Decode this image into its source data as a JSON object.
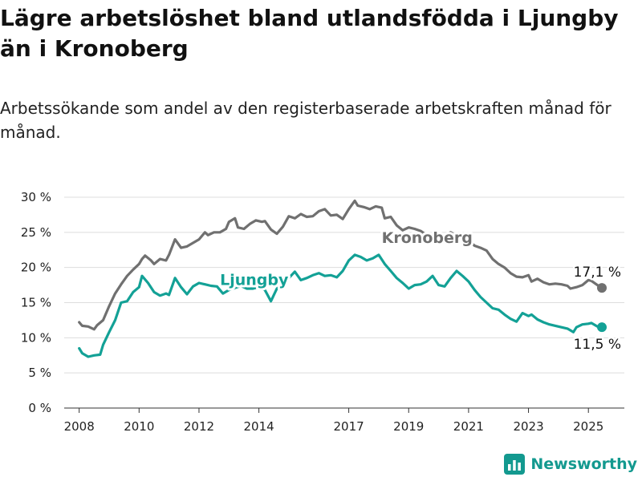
{
  "title": "Lägre arbetslöshet bland utlandsfödda i Ljungby än i Kronoberg",
  "subtitle": "Arbetssökande som andel av den registerbaserade arbetskraften månad för månad.",
  "brand": {
    "name": "Newsworthy",
    "color": "#13998f"
  },
  "chart_data": {
    "type": "line",
    "y_ticks": [
      "0 %",
      "5 %",
      "10 %",
      "15 %",
      "20 %",
      "25 %",
      "30 %"
    ],
    "ylim": [
      0,
      30
    ],
    "x_ticks": [
      "2008",
      "2010",
      "2012",
      "2014",
      "2017",
      "2019",
      "2021",
      "2023",
      "2025"
    ],
    "x_tick_values": [
      2008.0,
      2010.0,
      2012.0,
      2014.0,
      2017.0,
      2019.0,
      2021.0,
      2023.0,
      2025.0
    ],
    "xlim": [
      2007.5,
      2026.2
    ],
    "grid": true,
    "series": [
      {
        "name": "Kronoberg",
        "color": "#707070",
        "end_label": "17,1 %",
        "end_value": 17.1,
        "points": [
          [
            2008.0,
            12.2
          ],
          [
            2008.1,
            11.7
          ],
          [
            2008.3,
            11.6
          ],
          [
            2008.5,
            11.2
          ],
          [
            2008.6,
            11.8
          ],
          [
            2008.8,
            12.5
          ],
          [
            2009.0,
            14.5
          ],
          [
            2009.2,
            16.3
          ],
          [
            2009.4,
            17.6
          ],
          [
            2009.6,
            18.8
          ],
          [
            2009.8,
            19.7
          ],
          [
            2010.0,
            20.5
          ],
          [
            2010.1,
            21.2
          ],
          [
            2010.2,
            21.7
          ],
          [
            2010.4,
            21.0
          ],
          [
            2010.5,
            20.5
          ],
          [
            2010.7,
            21.2
          ],
          [
            2010.9,
            21.0
          ],
          [
            2011.0,
            21.8
          ],
          [
            2011.2,
            24.0
          ],
          [
            2011.4,
            22.8
          ],
          [
            2011.6,
            23.0
          ],
          [
            2011.8,
            23.5
          ],
          [
            2012.0,
            24.0
          ],
          [
            2012.2,
            25.0
          ],
          [
            2012.3,
            24.6
          ],
          [
            2012.5,
            25.0
          ],
          [
            2012.7,
            25.0
          ],
          [
            2012.9,
            25.5
          ],
          [
            2013.0,
            26.5
          ],
          [
            2013.2,
            27.0
          ],
          [
            2013.3,
            25.7
          ],
          [
            2013.5,
            25.5
          ],
          [
            2013.7,
            26.2
          ],
          [
            2013.9,
            26.7
          ],
          [
            2014.1,
            26.5
          ],
          [
            2014.2,
            26.6
          ],
          [
            2014.4,
            25.4
          ],
          [
            2014.6,
            24.8
          ],
          [
            2014.8,
            25.8
          ],
          [
            2015.0,
            27.3
          ],
          [
            2015.2,
            27.0
          ],
          [
            2015.4,
            27.6
          ],
          [
            2015.6,
            27.2
          ],
          [
            2015.8,
            27.3
          ],
          [
            2016.0,
            28.0
          ],
          [
            2016.2,
            28.3
          ],
          [
            2016.4,
            27.4
          ],
          [
            2016.6,
            27.5
          ],
          [
            2016.8,
            26.9
          ],
          [
            2017.0,
            28.3
          ],
          [
            2017.2,
            29.5
          ],
          [
            2017.3,
            28.8
          ],
          [
            2017.5,
            28.6
          ],
          [
            2017.7,
            28.3
          ],
          [
            2017.9,
            28.7
          ],
          [
            2018.1,
            28.5
          ],
          [
            2018.2,
            27.0
          ],
          [
            2018.4,
            27.2
          ],
          [
            2018.6,
            26.0
          ],
          [
            2018.8,
            25.3
          ],
          [
            2019.0,
            25.7
          ],
          [
            2019.2,
            25.5
          ],
          [
            2019.4,
            25.2
          ],
          [
            2019.6,
            24.6
          ],
          [
            2019.8,
            24.2
          ],
          [
            2020.0,
            23.8
          ],
          [
            2020.2,
            24.5
          ],
          [
            2020.4,
            25.0
          ],
          [
            2020.6,
            24.5
          ],
          [
            2020.8,
            24.0
          ],
          [
            2021.0,
            23.8
          ],
          [
            2021.2,
            23.1
          ],
          [
            2021.4,
            22.8
          ],
          [
            2021.6,
            22.4
          ],
          [
            2021.8,
            21.2
          ],
          [
            2022.0,
            20.5
          ],
          [
            2022.2,
            20.0
          ],
          [
            2022.4,
            19.2
          ],
          [
            2022.6,
            18.7
          ],
          [
            2022.8,
            18.6
          ],
          [
            2023.0,
            18.9
          ],
          [
            2023.1,
            18.0
          ],
          [
            2023.3,
            18.4
          ],
          [
            2023.5,
            17.9
          ],
          [
            2023.7,
            17.6
          ],
          [
            2023.9,
            17.7
          ],
          [
            2024.1,
            17.6
          ],
          [
            2024.3,
            17.4
          ],
          [
            2024.4,
            17.0
          ],
          [
            2024.6,
            17.2
          ],
          [
            2024.8,
            17.5
          ],
          [
            2025.0,
            18.2
          ],
          [
            2025.1,
            18.1
          ],
          [
            2025.3,
            17.5
          ],
          [
            2025.45,
            17.1
          ]
        ]
      },
      {
        "name": "Ljungby",
        "color": "#13a196",
        "end_label": "11,5 %",
        "end_value": 11.5,
        "points": [
          [
            2008.0,
            8.5
          ],
          [
            2008.1,
            7.8
          ],
          [
            2008.3,
            7.3
          ],
          [
            2008.5,
            7.5
          ],
          [
            2008.7,
            7.6
          ],
          [
            2008.8,
            9.0
          ],
          [
            2009.0,
            10.8
          ],
          [
            2009.2,
            12.5
          ],
          [
            2009.4,
            15.0
          ],
          [
            2009.6,
            15.2
          ],
          [
            2009.8,
            16.5
          ],
          [
            2010.0,
            17.2
          ],
          [
            2010.1,
            18.8
          ],
          [
            2010.3,
            17.8
          ],
          [
            2010.5,
            16.5
          ],
          [
            2010.7,
            16.0
          ],
          [
            2010.9,
            16.3
          ],
          [
            2011.0,
            16.1
          ],
          [
            2011.2,
            18.5
          ],
          [
            2011.4,
            17.2
          ],
          [
            2011.6,
            16.2
          ],
          [
            2011.8,
            17.3
          ],
          [
            2012.0,
            17.8
          ],
          [
            2012.2,
            17.6
          ],
          [
            2012.4,
            17.4
          ],
          [
            2012.6,
            17.3
          ],
          [
            2012.8,
            16.3
          ],
          [
            2013.0,
            16.8
          ],
          [
            2013.2,
            17.1
          ],
          [
            2013.4,
            17.4
          ],
          [
            2013.6,
            17.0
          ],
          [
            2013.8,
            17.0
          ],
          [
            2014.0,
            17.2
          ],
          [
            2014.2,
            16.8
          ],
          [
            2014.4,
            15.2
          ],
          [
            2014.6,
            17.0
          ],
          [
            2014.8,
            17.8
          ],
          [
            2015.0,
            18.5
          ],
          [
            2015.2,
            19.4
          ],
          [
            2015.4,
            18.2
          ],
          [
            2015.6,
            18.5
          ],
          [
            2015.8,
            18.9
          ],
          [
            2016.0,
            19.2
          ],
          [
            2016.2,
            18.8
          ],
          [
            2016.4,
            18.9
          ],
          [
            2016.6,
            18.6
          ],
          [
            2016.8,
            19.5
          ],
          [
            2017.0,
            21.0
          ],
          [
            2017.2,
            21.8
          ],
          [
            2017.4,
            21.5
          ],
          [
            2017.6,
            21.0
          ],
          [
            2017.8,
            21.3
          ],
          [
            2018.0,
            21.8
          ],
          [
            2018.2,
            20.5
          ],
          [
            2018.4,
            19.5
          ],
          [
            2018.6,
            18.5
          ],
          [
            2018.8,
            17.8
          ],
          [
            2019.0,
            17.0
          ],
          [
            2019.2,
            17.5
          ],
          [
            2019.4,
            17.6
          ],
          [
            2019.6,
            18.0
          ],
          [
            2019.8,
            18.8
          ],
          [
            2020.0,
            17.5
          ],
          [
            2020.2,
            17.3
          ],
          [
            2020.4,
            18.5
          ],
          [
            2020.6,
            19.5
          ],
          [
            2020.8,
            18.8
          ],
          [
            2021.0,
            18.0
          ],
          [
            2021.2,
            16.8
          ],
          [
            2021.4,
            15.8
          ],
          [
            2021.6,
            15.0
          ],
          [
            2021.8,
            14.2
          ],
          [
            2022.0,
            14.0
          ],
          [
            2022.2,
            13.3
          ],
          [
            2022.4,
            12.7
          ],
          [
            2022.6,
            12.3
          ],
          [
            2022.8,
            13.5
          ],
          [
            2023.0,
            13.1
          ],
          [
            2023.1,
            13.3
          ],
          [
            2023.3,
            12.6
          ],
          [
            2023.5,
            12.2
          ],
          [
            2023.7,
            11.9
          ],
          [
            2023.9,
            11.7
          ],
          [
            2024.1,
            11.5
          ],
          [
            2024.3,
            11.3
          ],
          [
            2024.5,
            10.8
          ],
          [
            2024.6,
            11.5
          ],
          [
            2024.8,
            11.9
          ],
          [
            2025.0,
            12.0
          ],
          [
            2025.1,
            12.1
          ],
          [
            2025.3,
            11.6
          ],
          [
            2025.45,
            11.5
          ]
        ]
      }
    ]
  }
}
